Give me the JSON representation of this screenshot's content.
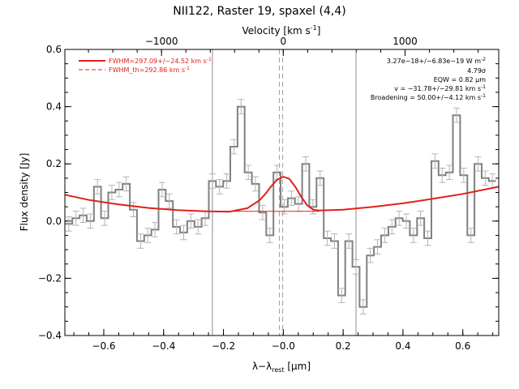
{
  "chart_data": {
    "type": "line",
    "title": "NII122, Raster 19, spaxel (4,4)",
    "xlabel": "λ−λ_rest [μm]",
    "xlabel_parts": {
      "main": "λ−λ",
      "sub": "rest",
      "unit": " [μm]"
    },
    "ylabel": "Flux density [Jy]",
    "top_axis": {
      "label": "Velocity [km s⁻¹]",
      "label_parts": {
        "main": "Velocity [km s",
        "sup": "-1",
        "end": "]"
      },
      "ticks": [
        -1000,
        0,
        1000
      ],
      "tick_labels": [
        "−1000",
        "0",
        "1000"
      ],
      "um_per_kms": 0.000407
    },
    "xlim": [
      -0.73,
      0.72
    ],
    "ylim": [
      -0.4,
      0.6
    ],
    "xticks": [
      -0.6,
      -0.4,
      -0.2,
      0.0,
      0.2,
      0.4,
      0.6
    ],
    "xtick_labels": [
      "−0.6",
      "−0.4",
      "−0.2",
      "−0.0",
      "0.2",
      "0.4",
      "0.6"
    ],
    "yticks": [
      -0.4,
      -0.2,
      0.0,
      0.2,
      0.4,
      0.6
    ],
    "ytick_labels": [
      "−0.4",
      "−0.2",
      "0.0",
      "0.2",
      "0.4",
      "0.6"
    ],
    "vertical_lines": {
      "solid_gray": [
        -0.237,
        0.243
      ],
      "dashed_gray": [
        -0.013,
        -0.002
      ]
    },
    "legend": {
      "placement": "top-left",
      "entries": [
        {
          "text": "FWHM=297.09+/−24.52 km s",
          "sup": "-1",
          "style": "solid"
        },
        {
          "text": "FWHM_th=292.86 km s",
          "sup": "-1",
          "style": "dashed"
        }
      ]
    },
    "annotations": {
      "placement": "top-right",
      "lines": [
        {
          "main": "3.27e−18+/−6.83e−19 W m",
          "sup": "-2"
        },
        {
          "main": "4.79σ",
          "sup": ""
        },
        {
          "main": "EQW = 0.82 μm",
          "sup": ""
        },
        {
          "main": "v = −31.78+/−29.81 km s",
          "sup": "-1"
        },
        {
          "main": "Broadening = 50.00+/−4.12 km s",
          "sup": "-1"
        }
      ]
    },
    "series": [
      {
        "style": "gray-steps-with-errorbars",
        "x": [
          -0.717,
          -0.693,
          -0.669,
          -0.645,
          -0.621,
          -0.597,
          -0.573,
          -0.549,
          -0.525,
          -0.501,
          -0.477,
          -0.453,
          -0.429,
          -0.405,
          -0.381,
          -0.357,
          -0.333,
          -0.309,
          -0.285,
          -0.261,
          -0.237,
          -0.213,
          -0.189,
          -0.165,
          -0.141,
          -0.117,
          -0.093,
          -0.069,
          -0.045,
          -0.021,
          0.003,
          0.027,
          0.051,
          0.075,
          0.099,
          0.123,
          0.147,
          0.171,
          0.195,
          0.219,
          0.243,
          0.267,
          0.291,
          0.315,
          0.339,
          0.363,
          0.387,
          0.411,
          0.435,
          0.459,
          0.483,
          0.507,
          0.531,
          0.555,
          0.579,
          0.603,
          0.627,
          0.651,
          0.675,
          0.699
        ],
        "y": [
          -0.01,
          0.01,
          0.02,
          0.0,
          0.12,
          0.01,
          0.1,
          0.11,
          0.13,
          0.04,
          -0.07,
          -0.05,
          -0.03,
          0.11,
          0.07,
          -0.02,
          -0.04,
          0.0,
          -0.02,
          0.01,
          0.14,
          0.12,
          0.14,
          0.26,
          0.4,
          0.17,
          0.13,
          0.03,
          -0.05,
          0.17,
          0.05,
          0.08,
          0.06,
          0.2,
          0.05,
          0.15,
          -0.06,
          -0.07,
          -0.26,
          -0.07,
          -0.16,
          -0.3,
          -0.12,
          -0.09,
          -0.05,
          -0.02,
          0.01,
          0.0,
          -0.05,
          0.01,
          -0.06,
          0.21,
          0.16,
          0.17,
          0.37,
          0.16,
          -0.05,
          0.2,
          0.15,
          0.14
        ],
        "error": 0.025
      },
      {
        "style": "red-fit",
        "description_of_points": "fit curve",
        "x": [
          -0.73,
          -0.65,
          -0.55,
          -0.45,
          -0.35,
          -0.25,
          -0.18,
          -0.12,
          -0.08,
          -0.06,
          -0.04,
          -0.02,
          0.0,
          0.02,
          0.04,
          0.06,
          0.08,
          0.1,
          0.12,
          0.2,
          0.3,
          0.4,
          0.5,
          0.6,
          0.72
        ],
        "y": [
          0.092,
          0.074,
          0.058,
          0.046,
          0.038,
          0.034,
          0.033,
          0.045,
          0.072,
          0.095,
          0.122,
          0.145,
          0.155,
          0.148,
          0.12,
          0.085,
          0.055,
          0.04,
          0.037,
          0.04,
          0.05,
          0.062,
          0.078,
          0.095,
          0.12
        ]
      },
      {
        "style": "red-thin-baseline",
        "x": [
          -0.25,
          0.12
        ],
        "y": [
          0.034,
          0.034
        ]
      }
    ]
  }
}
